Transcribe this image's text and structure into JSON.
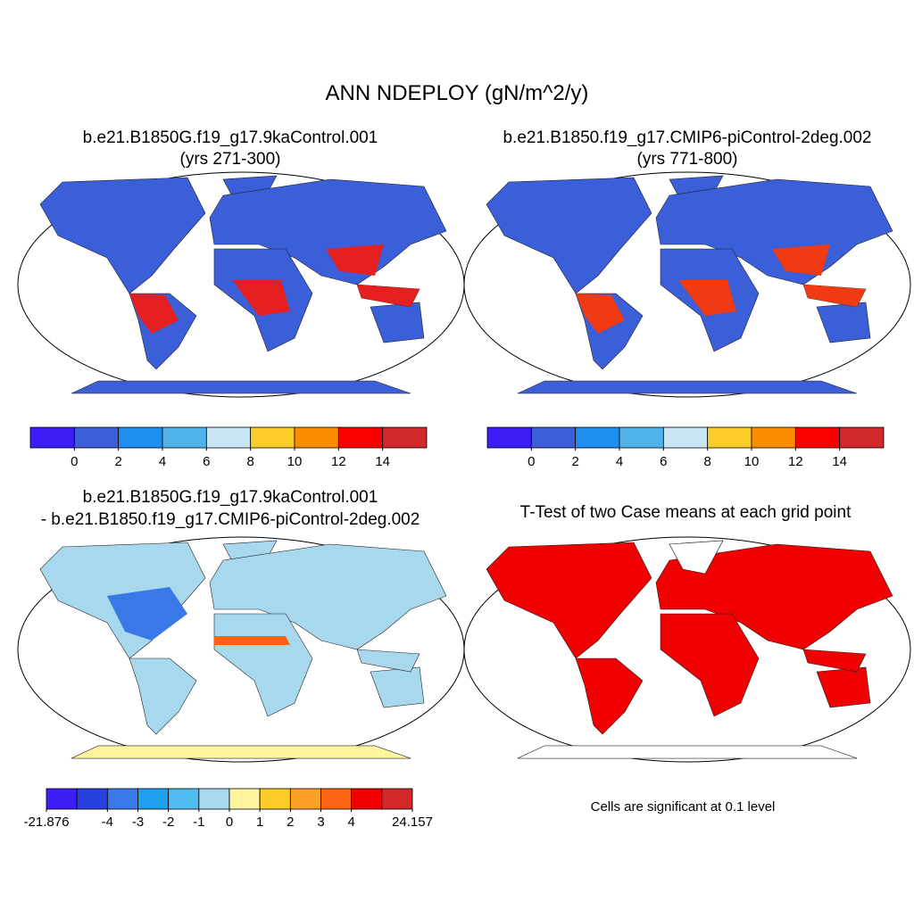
{
  "title": "ANN NDEPLOY (gN/m^2/y)",
  "panels": [
    {
      "title": [
        "b.e21.B1850G.f19_g17.9kaControl.001",
        "(yrs 271-300)"
      ],
      "colorbar": {
        "colors": [
          "#3a1ef5",
          "#3a5fd8",
          "#1e90f0",
          "#50b4eb",
          "#c8e6f5",
          "#fccd28",
          "#fc8c00",
          "#fa0000",
          "#d22a2a"
        ],
        "ticks": [
          null,
          0,
          2,
          4,
          6,
          8,
          10,
          12,
          14,
          null
        ]
      }
    },
    {
      "title": [
        "b.e21.B1850.f19_g17.CMIP6-piControl-2deg.002",
        "(yrs 771-800)"
      ],
      "colorbar": {
        "colors": [
          "#3a1ef5",
          "#3a5fd8",
          "#1e90f0",
          "#50b4eb",
          "#c8e6f5",
          "#fccd28",
          "#fc8c00",
          "#fa0000",
          "#d22a2a"
        ],
        "ticks": [
          null,
          0,
          2,
          4,
          6,
          8,
          10,
          12,
          14,
          null
        ]
      }
    },
    {
      "title": [
        "b.e21.B1850G.f19_g17.9kaControl.001",
        "- b.e21.B1850.f19_g17.CMIP6-piControl-2deg.002"
      ],
      "colorbar": {
        "colors": [
          "#3a1ef5",
          "#2840e0",
          "#3a78e8",
          "#1ea0f0",
          "#50bcf0",
          "#a8d8ee",
          "#fff5a0",
          "#fccd28",
          "#fca028",
          "#fc6414",
          "#f00000",
          "#d22828"
        ],
        "ticks": [
          -21.876,
          null,
          -4,
          -3,
          -2,
          -1,
          0,
          1,
          2,
          3,
          4,
          null,
          24.157
        ]
      }
    },
    {
      "title": [
        "T-Test of two Case means at each grid point"
      ],
      "note": "Cells are significant at 0.1 level"
    }
  ]
}
